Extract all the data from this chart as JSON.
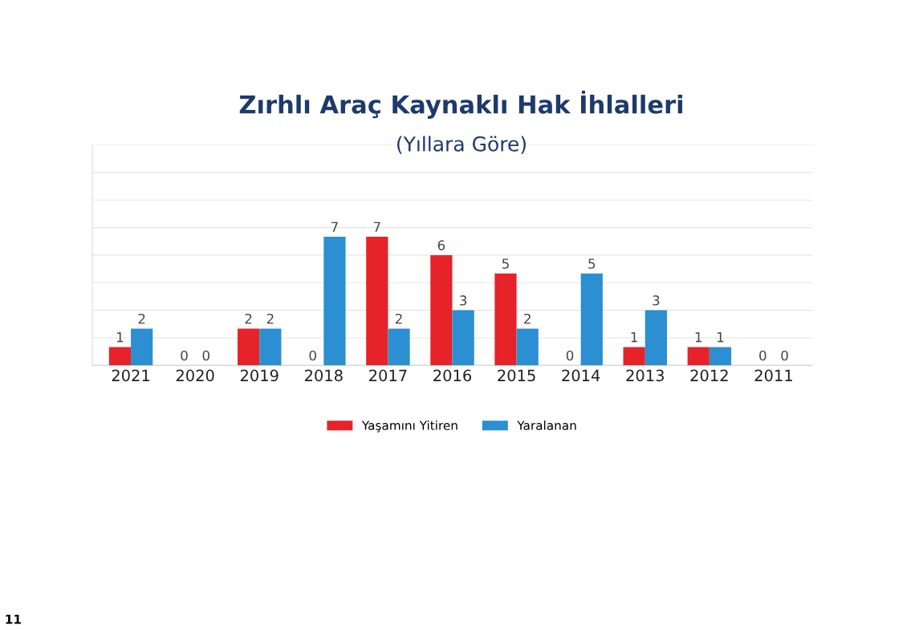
{
  "chart_data": {
    "type": "bar",
    "title": "Zırhlı Araç Kaynaklı Hak İhlalleri",
    "subtitle": "(Yıllara Göre)",
    "categories": [
      "2021",
      "2020",
      "2019",
      "2018",
      "2017",
      "2016",
      "2015",
      "2014",
      "2013",
      "2012",
      "2011"
    ],
    "series": [
      {
        "name": "Yaşamını Yitiren",
        "color": "#e52329",
        "values": [
          1,
          0,
          2,
          0,
          7,
          6,
          5,
          0,
          1,
          1,
          0
        ]
      },
      {
        "name": "Yaralanan",
        "color": "#2b8fd1",
        "values": [
          2,
          0,
          2,
          7,
          2,
          3,
          2,
          5,
          3,
          1,
          0
        ]
      }
    ],
    "ylim": [
      0,
      12
    ],
    "yticks": [
      {
        "value": 0,
        "label": null
      },
      {
        "value": 1.5,
        "label": null
      },
      {
        "value": 3,
        "label": null
      },
      {
        "value": 4.5,
        "label": null
      },
      {
        "value": 6,
        "label": null
      },
      {
        "value": 7.5,
        "label": null
      },
      {
        "value": 9,
        "label": null
      },
      {
        "value": 10.5,
        "label": null
      },
      {
        "value": 12,
        "label": null
      }
    ],
    "tick_labels": "x",
    "grid": "y",
    "legend": "bottom",
    "data_labels": true,
    "annotations": [
      "11"
    ]
  }
}
